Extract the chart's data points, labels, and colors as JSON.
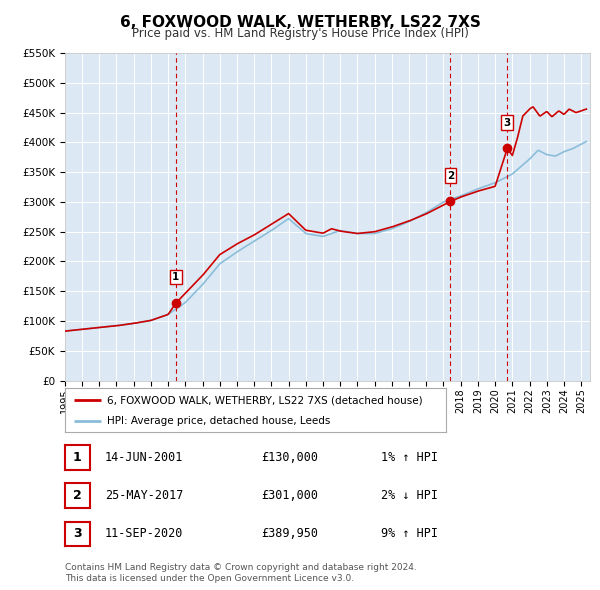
{
  "title": "6, FOXWOOD WALK, WETHERBY, LS22 7XS",
  "subtitle": "Price paid vs. HM Land Registry's House Price Index (HPI)",
  "bg_color": "#dce9f5",
  "hpi_color": "#8bbdd9",
  "price_color": "#cc0000",
  "marker_color": "#cc0000",
  "vline_color": "#cc0000",
  "ylim": [
    0,
    550000
  ],
  "yticks": [
    0,
    50000,
    100000,
    150000,
    200000,
    250000,
    300000,
    350000,
    400000,
    450000,
    500000,
    550000
  ],
  "ytick_labels": [
    "£0",
    "£50K",
    "£100K",
    "£150K",
    "£200K",
    "£250K",
    "£300K",
    "£350K",
    "£400K",
    "£450K",
    "£500K",
    "£550K"
  ],
  "xmin": 1995.0,
  "xmax": 2025.5,
  "xticks": [
    1995,
    1996,
    1997,
    1998,
    1999,
    2000,
    2001,
    2002,
    2003,
    2004,
    2005,
    2006,
    2007,
    2008,
    2009,
    2010,
    2011,
    2012,
    2013,
    2014,
    2015,
    2016,
    2017,
    2018,
    2019,
    2020,
    2021,
    2022,
    2023,
    2024,
    2025
  ],
  "legend_label_price": "6, FOXWOOD WALK, WETHERBY, LS22 7XS (detached house)",
  "legend_label_hpi": "HPI: Average price, detached house, Leeds",
  "sale_dates": [
    2001.45,
    2017.4,
    2020.7
  ],
  "sale_prices": [
    130000,
    301000,
    389950
  ],
  "sale_labels": [
    "1",
    "2",
    "3"
  ],
  "vline_dates": [
    2001.45,
    2017.4,
    2020.7
  ],
  "table_rows": [
    [
      "1",
      "14-JUN-2001",
      "£130,000",
      "1% ↑ HPI"
    ],
    [
      "2",
      "25-MAY-2017",
      "£301,000",
      "2% ↓ HPI"
    ],
    [
      "3",
      "11-SEP-2020",
      "£389,950",
      "9% ↑ HPI"
    ]
  ],
  "footnote1": "Contains HM Land Registry data © Crown copyright and database right 2024.",
  "footnote2": "This data is licensed under the Open Government Licence v3.0."
}
